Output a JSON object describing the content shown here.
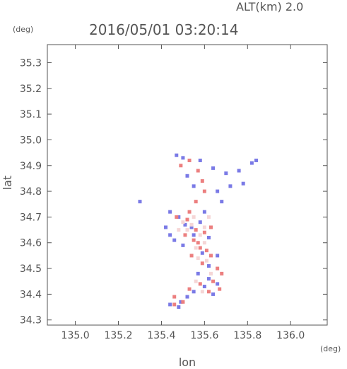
{
  "header": {
    "altitude_label": "ALT(km) 2.0",
    "timestamp": "2016/05/01 03:20:14",
    "y_unit": "(deg)",
    "x_unit": "(deg)"
  },
  "chart_data": {
    "type": "scatter",
    "xlabel": "lon",
    "ylabel": "lat",
    "xlim": [
      134.87,
      136.17
    ],
    "ylim": [
      34.28,
      35.37
    ],
    "x_ticks": [
      "135.0",
      "135.2",
      "135.4",
      "135.6",
      "135.8",
      "136.0"
    ],
    "y_ticks": [
      "34.3",
      "34.4",
      "34.5",
      "34.6",
      "34.7",
      "34.8",
      "34.9",
      "35.0",
      "35.1",
      "35.2",
      "35.3"
    ],
    "grid": false,
    "series": [
      {
        "color": "#7a7ae6",
        "points": [
          [
            135.47,
            34.94
          ],
          [
            135.5,
            34.93
          ],
          [
            135.58,
            34.92
          ],
          [
            135.64,
            34.89
          ],
          [
            135.7,
            34.87
          ],
          [
            135.76,
            34.88
          ],
          [
            135.82,
            34.91
          ],
          [
            135.84,
            34.92
          ],
          [
            135.72,
            34.82
          ],
          [
            135.66,
            34.8
          ],
          [
            135.52,
            34.86
          ],
          [
            135.55,
            34.82
          ],
          [
            135.3,
            34.76
          ],
          [
            135.44,
            34.72
          ],
          [
            135.42,
            34.66
          ],
          [
            135.44,
            34.63
          ],
          [
            135.46,
            34.61
          ],
          [
            135.5,
            34.59
          ],
          [
            135.54,
            34.66
          ],
          [
            135.58,
            34.68
          ],
          [
            135.62,
            34.62
          ],
          [
            135.66,
            34.55
          ],
          [
            135.62,
            34.51
          ],
          [
            135.57,
            34.48
          ],
          [
            135.62,
            34.46
          ],
          [
            135.66,
            34.44
          ],
          [
            135.6,
            34.43
          ],
          [
            135.55,
            34.41
          ],
          [
            135.52,
            34.39
          ],
          [
            135.49,
            34.37
          ],
          [
            135.44,
            34.36
          ],
          [
            135.48,
            34.35
          ],
          [
            135.64,
            34.4
          ],
          [
            135.59,
            34.56
          ],
          [
            135.55,
            34.63
          ],
          [
            135.51,
            34.67
          ],
          [
            135.48,
            34.7
          ],
          [
            135.6,
            34.72
          ],
          [
            135.68,
            34.76
          ],
          [
            135.78,
            34.83
          ]
        ]
      },
      {
        "color": "#ec7f7f",
        "points": [
          [
            135.49,
            34.9
          ],
          [
            135.53,
            34.92
          ],
          [
            135.57,
            34.88
          ],
          [
            135.6,
            34.8
          ],
          [
            135.56,
            34.76
          ],
          [
            135.47,
            34.7
          ],
          [
            135.52,
            34.69
          ],
          [
            135.56,
            34.65
          ],
          [
            135.6,
            34.64
          ],
          [
            135.55,
            34.61
          ],
          [
            135.58,
            34.58
          ],
          [
            135.61,
            34.57
          ],
          [
            135.54,
            34.55
          ],
          [
            135.59,
            34.52
          ],
          [
            135.66,
            34.5
          ],
          [
            135.68,
            34.48
          ],
          [
            135.64,
            34.45
          ],
          [
            135.58,
            34.44
          ],
          [
            135.53,
            34.42
          ],
          [
            135.46,
            34.39
          ],
          [
            135.5,
            34.37
          ],
          [
            135.62,
            34.41
          ],
          [
            135.67,
            34.42
          ],
          [
            135.63,
            34.55
          ],
          [
            135.57,
            34.6
          ],
          [
            135.51,
            34.63
          ],
          [
            135.53,
            34.72
          ],
          [
            135.63,
            34.66
          ],
          [
            135.46,
            34.36
          ],
          [
            135.59,
            34.84
          ]
        ]
      },
      {
        "color": "#f5d6d6",
        "points": [
          [
            135.5,
            34.68
          ],
          [
            135.54,
            34.67
          ],
          [
            135.58,
            34.63
          ],
          [
            135.56,
            34.58
          ],
          [
            135.6,
            34.6
          ],
          [
            135.57,
            34.54
          ],
          [
            135.61,
            34.53
          ],
          [
            135.63,
            34.48
          ],
          [
            135.56,
            34.45
          ],
          [
            135.59,
            34.41
          ],
          [
            135.52,
            34.65
          ],
          [
            135.48,
            34.65
          ],
          [
            135.62,
            34.7
          ],
          [
            135.55,
            34.7
          ],
          [
            135.6,
            34.66
          ]
        ]
      }
    ]
  }
}
